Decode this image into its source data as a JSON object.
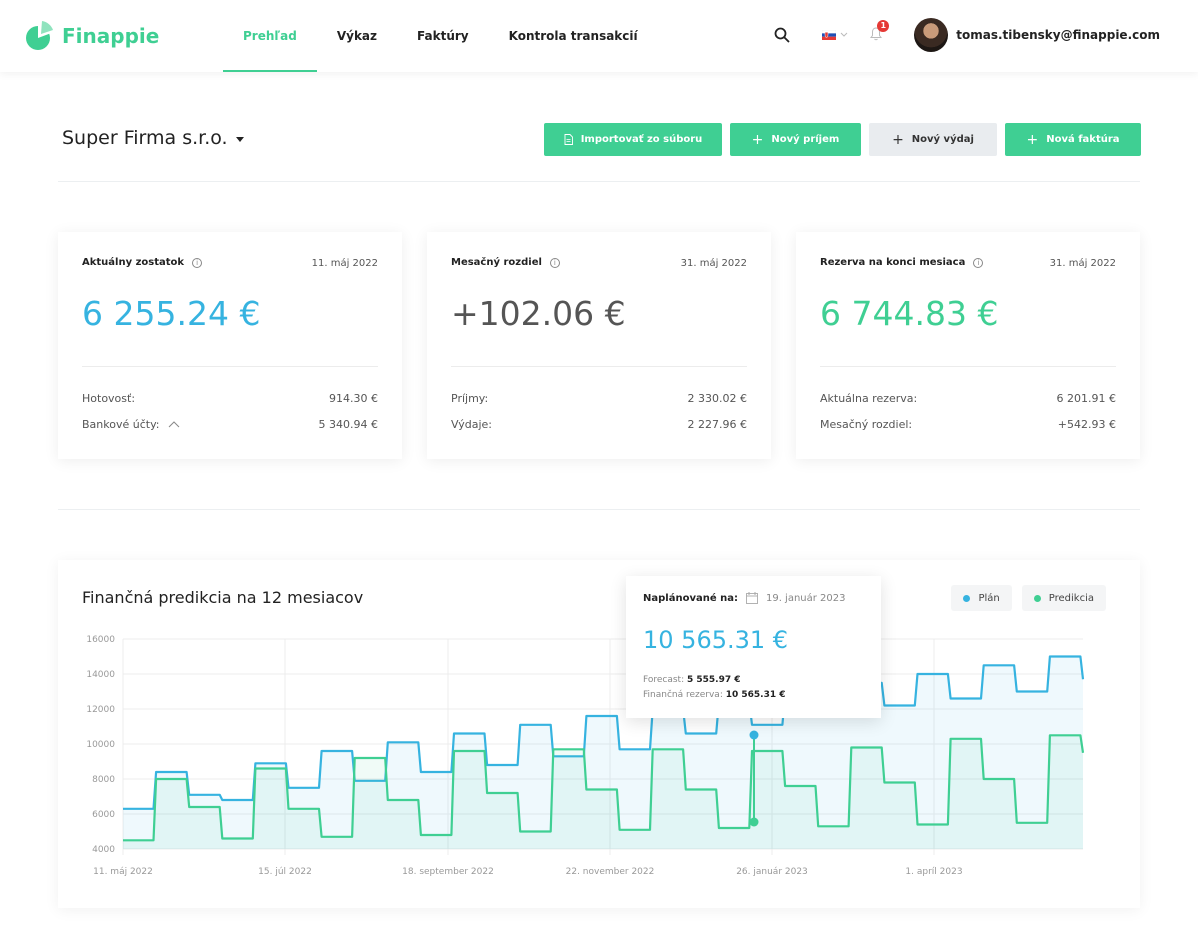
{
  "app": {
    "name": "Finappie"
  },
  "nav": [
    {
      "label": "Prehľad",
      "active": true
    },
    {
      "label": "Výkaz",
      "active": false
    },
    {
      "label": "Faktúry",
      "active": false
    },
    {
      "label": "Kontrola transakcií",
      "active": false
    }
  ],
  "header": {
    "user_email": "tomas.tibensky@finappie.com",
    "notification_count": "1"
  },
  "company": {
    "name": "Super Firma s.r.o."
  },
  "actions": {
    "import": "Importovať zo súboru",
    "new_income": "Nový príjem",
    "new_expense": "Nový výdaj",
    "new_invoice": "Nová faktúra"
  },
  "cards": [
    {
      "label": "Aktuálny zostatok",
      "date": "11. máj 2022",
      "value": "6 255.24 €",
      "color": "#36b3e0",
      "rows": [
        {
          "label": "Hotovosť:",
          "value": "914.30 €"
        },
        {
          "label": "Bankové účty:",
          "value": "5 340.94 €"
        }
      ]
    },
    {
      "label": "Mesačný rozdiel",
      "date": "31. máj 2022",
      "value": "+102.06 €",
      "color": "#555555",
      "rows": [
        {
          "label": "Príjmy:",
          "value": "2 330.02 €"
        },
        {
          "label": "Výdaje:",
          "value": "2 227.96 €"
        }
      ]
    },
    {
      "label": "Rezerva na konci mesiaca",
      "date": "31. máj 2022",
      "value": "6 744.83 €",
      "color": "#3fcf93",
      "rows": [
        {
          "label": "Aktuálna rezerva:",
          "value": "6 201.91 €"
        },
        {
          "label": "Mesačný rozdiel:",
          "value": "+542.93 €"
        }
      ]
    }
  ],
  "chart": {
    "title": "Finančná predikcia na 12 mesiacov",
    "legend": [
      "Plán",
      "Predikcia"
    ]
  },
  "tooltip": {
    "label": "Naplánované na:",
    "date": "19. január 2023",
    "value": "10 565.31 €",
    "forecast_label": "Forecast:",
    "forecast_value": "5 555.97 €",
    "reserve_label": "Finančná rezerva:",
    "reserve_value": "10 565.31 €"
  },
  "chart_data": {
    "type": "line",
    "title": "Finančná predikcia na 12 mesiacov",
    "y_ticks": [
      4000,
      6000,
      8000,
      10000,
      12000,
      14000,
      16000
    ],
    "ylim": [
      4000,
      16000
    ],
    "x_ticks": [
      "11. máj 2022",
      "15. júl 2022",
      "18. september 2022",
      "22. november 2022",
      "26. január 2023",
      "1. apríl 2023"
    ],
    "grid": true,
    "legend_position": "top-right",
    "colors": {
      "plan": "#36b3e0",
      "prediction": "#3fcf93"
    },
    "series": [
      {
        "name": "Plán",
        "values": [
          6300,
          8400,
          7100,
          6800,
          8900,
          7500,
          9600,
          7900,
          10100,
          8400,
          10600,
          8800,
          11100,
          9300,
          11600,
          9700,
          12000,
          10600,
          12400,
          11100,
          12900,
          11600,
          13500,
          12200,
          14000,
          12600,
          14500,
          13000,
          15000,
          13700
        ]
      },
      {
        "name": "Predikcia",
        "values": [
          4500,
          8000,
          6400,
          4600,
          8600,
          6300,
          4700,
          9200,
          6800,
          4800,
          9600,
          7200,
          5000,
          9700,
          7400,
          5100,
          9700,
          7400,
          5200,
          9600,
          7600,
          5300,
          9800,
          7800,
          5400,
          10300,
          8000,
          5500,
          10500,
          9500
        ]
      }
    ]
  }
}
